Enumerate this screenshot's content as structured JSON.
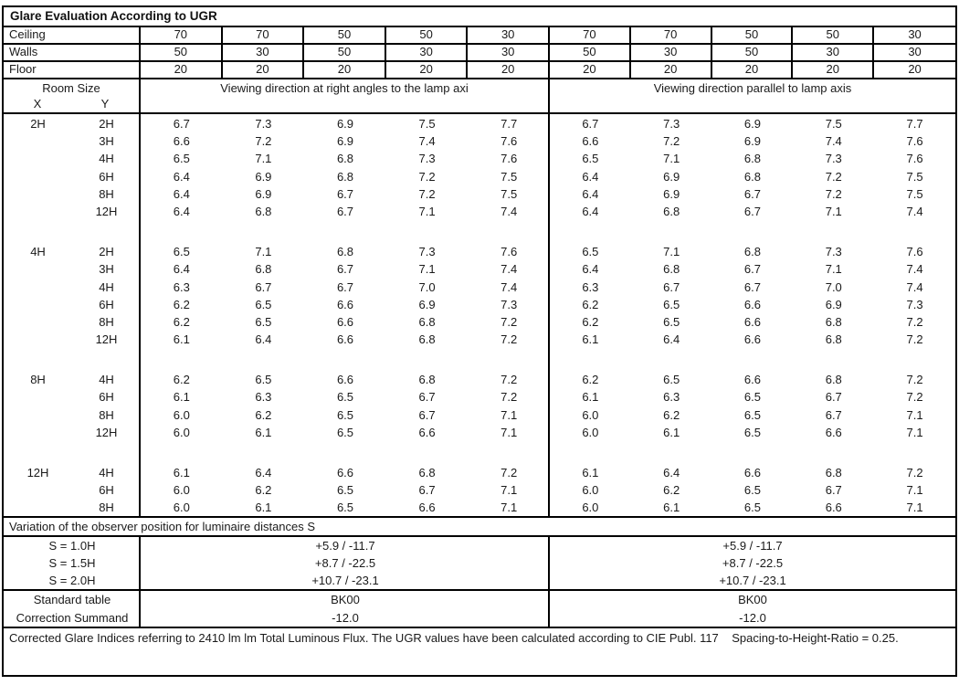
{
  "title": "Glare Evaluation According to UGR",
  "surface_rows": [
    {
      "label": "Ceiling",
      "values": [
        "70",
        "70",
        "50",
        "50",
        "30",
        "70",
        "70",
        "50",
        "50",
        "30"
      ]
    },
    {
      "label": "Walls",
      "values": [
        "50",
        "30",
        "50",
        "30",
        "30",
        "50",
        "30",
        "50",
        "30",
        "30"
      ]
    },
    {
      "label": "Floor",
      "values": [
        "20",
        "20",
        "20",
        "20",
        "20",
        "20",
        "20",
        "20",
        "20",
        "20"
      ]
    }
  ],
  "header": {
    "room_size": "Room Size",
    "x_label": "X",
    "y_label": "Y",
    "group_left": "Viewing direction at right angles to the lamp axi",
    "group_right": "Viewing direction parallel to lamp axis"
  },
  "ugr_groups": [
    {
      "x": "2H",
      "rows": [
        {
          "y": "2H",
          "left": [
            "6.7",
            "7.3",
            "6.9",
            "7.5",
            "7.7"
          ],
          "right": [
            "6.7",
            "7.3",
            "6.9",
            "7.5",
            "7.7"
          ]
        },
        {
          "y": "3H",
          "left": [
            "6.6",
            "7.2",
            "6.9",
            "7.4",
            "7.6"
          ],
          "right": [
            "6.6",
            "7.2",
            "6.9",
            "7.4",
            "7.6"
          ]
        },
        {
          "y": "4H",
          "left": [
            "6.5",
            "7.1",
            "6.8",
            "7.3",
            "7.6"
          ],
          "right": [
            "6.5",
            "7.1",
            "6.8",
            "7.3",
            "7.6"
          ]
        },
        {
          "y": "6H",
          "left": [
            "6.4",
            "6.9",
            "6.8",
            "7.2",
            "7.5"
          ],
          "right": [
            "6.4",
            "6.9",
            "6.8",
            "7.2",
            "7.5"
          ]
        },
        {
          "y": "8H",
          "left": [
            "6.4",
            "6.9",
            "6.7",
            "7.2",
            "7.5"
          ],
          "right": [
            "6.4",
            "6.9",
            "6.7",
            "7.2",
            "7.5"
          ]
        },
        {
          "y": "12H",
          "left": [
            "6.4",
            "6.8",
            "6.7",
            "7.1",
            "7.4"
          ],
          "right": [
            "6.4",
            "6.8",
            "6.7",
            "7.1",
            "7.4"
          ]
        }
      ]
    },
    {
      "x": "4H",
      "rows": [
        {
          "y": "2H",
          "left": [
            "6.5",
            "7.1",
            "6.8",
            "7.3",
            "7.6"
          ],
          "right": [
            "6.5",
            "7.1",
            "6.8",
            "7.3",
            "7.6"
          ]
        },
        {
          "y": "3H",
          "left": [
            "6.4",
            "6.8",
            "6.7",
            "7.1",
            "7.4"
          ],
          "right": [
            "6.4",
            "6.8",
            "6.7",
            "7.1",
            "7.4"
          ]
        },
        {
          "y": "4H",
          "left": [
            "6.3",
            "6.7",
            "6.7",
            "7.0",
            "7.4"
          ],
          "right": [
            "6.3",
            "6.7",
            "6.7",
            "7.0",
            "7.4"
          ]
        },
        {
          "y": "6H",
          "left": [
            "6.2",
            "6.5",
            "6.6",
            "6.9",
            "7.3"
          ],
          "right": [
            "6.2",
            "6.5",
            "6.6",
            "6.9",
            "7.3"
          ]
        },
        {
          "y": "8H",
          "left": [
            "6.2",
            "6.5",
            "6.6",
            "6.8",
            "7.2"
          ],
          "right": [
            "6.2",
            "6.5",
            "6.6",
            "6.8",
            "7.2"
          ]
        },
        {
          "y": "12H",
          "left": [
            "6.1",
            "6.4",
            "6.6",
            "6.8",
            "7.2"
          ],
          "right": [
            "6.1",
            "6.4",
            "6.6",
            "6.8",
            "7.2"
          ]
        }
      ]
    },
    {
      "x": "8H",
      "rows": [
        {
          "y": "4H",
          "left": [
            "6.2",
            "6.5",
            "6.6",
            "6.8",
            "7.2"
          ],
          "right": [
            "6.2",
            "6.5",
            "6.6",
            "6.8",
            "7.2"
          ]
        },
        {
          "y": "6H",
          "left": [
            "6.1",
            "6.3",
            "6.5",
            "6.7",
            "7.2"
          ],
          "right": [
            "6.1",
            "6.3",
            "6.5",
            "6.7",
            "7.2"
          ]
        },
        {
          "y": "8H",
          "left": [
            "6.0",
            "6.2",
            "6.5",
            "6.7",
            "7.1"
          ],
          "right": [
            "6.0",
            "6.2",
            "6.5",
            "6.7",
            "7.1"
          ]
        },
        {
          "y": "12H",
          "left": [
            "6.0",
            "6.1",
            "6.5",
            "6.6",
            "7.1"
          ],
          "right": [
            "6.0",
            "6.1",
            "6.5",
            "6.6",
            "7.1"
          ]
        }
      ]
    },
    {
      "x": "12H",
      "rows": [
        {
          "y": "4H",
          "left": [
            "6.1",
            "6.4",
            "6.6",
            "6.8",
            "7.2"
          ],
          "right": [
            "6.1",
            "6.4",
            "6.6",
            "6.8",
            "7.2"
          ]
        },
        {
          "y": "6H",
          "left": [
            "6.0",
            "6.2",
            "6.5",
            "6.7",
            "7.1"
          ],
          "right": [
            "6.0",
            "6.2",
            "6.5",
            "6.7",
            "7.1"
          ]
        },
        {
          "y": "8H",
          "left": [
            "6.0",
            "6.1",
            "6.5",
            "6.6",
            "7.1"
          ],
          "right": [
            "6.0",
            "6.1",
            "6.5",
            "6.6",
            "7.1"
          ]
        }
      ]
    }
  ],
  "variation": {
    "header": "Variation of the observer position for luminaire distances S",
    "rows": [
      {
        "label": "S = 1.0H",
        "left": "+5.9 / -11.7",
        "right": "+5.9 / -11.7"
      },
      {
        "label": "S = 1.5H",
        "left": "+8.7 / -22.5",
        "right": "+8.7 / -22.5"
      },
      {
        "label": "S = 2.0H",
        "left": "+10.7 / -23.1",
        "right": "+10.7 / -23.1"
      }
    ]
  },
  "summary": {
    "rows": [
      {
        "label": "Standard table",
        "left": "BK00",
        "right": "BK00"
      },
      {
        "label": "Correction Summand",
        "left": "-12.0",
        "right": "-12.0"
      }
    ]
  },
  "footer": "Corrected Glare Indices referring to 2410 lm lm Total Luminous Flux. The UGR values have been calculated according to CIE Publ. 117    Spacing-to-Height-Ratio = 0.25."
}
